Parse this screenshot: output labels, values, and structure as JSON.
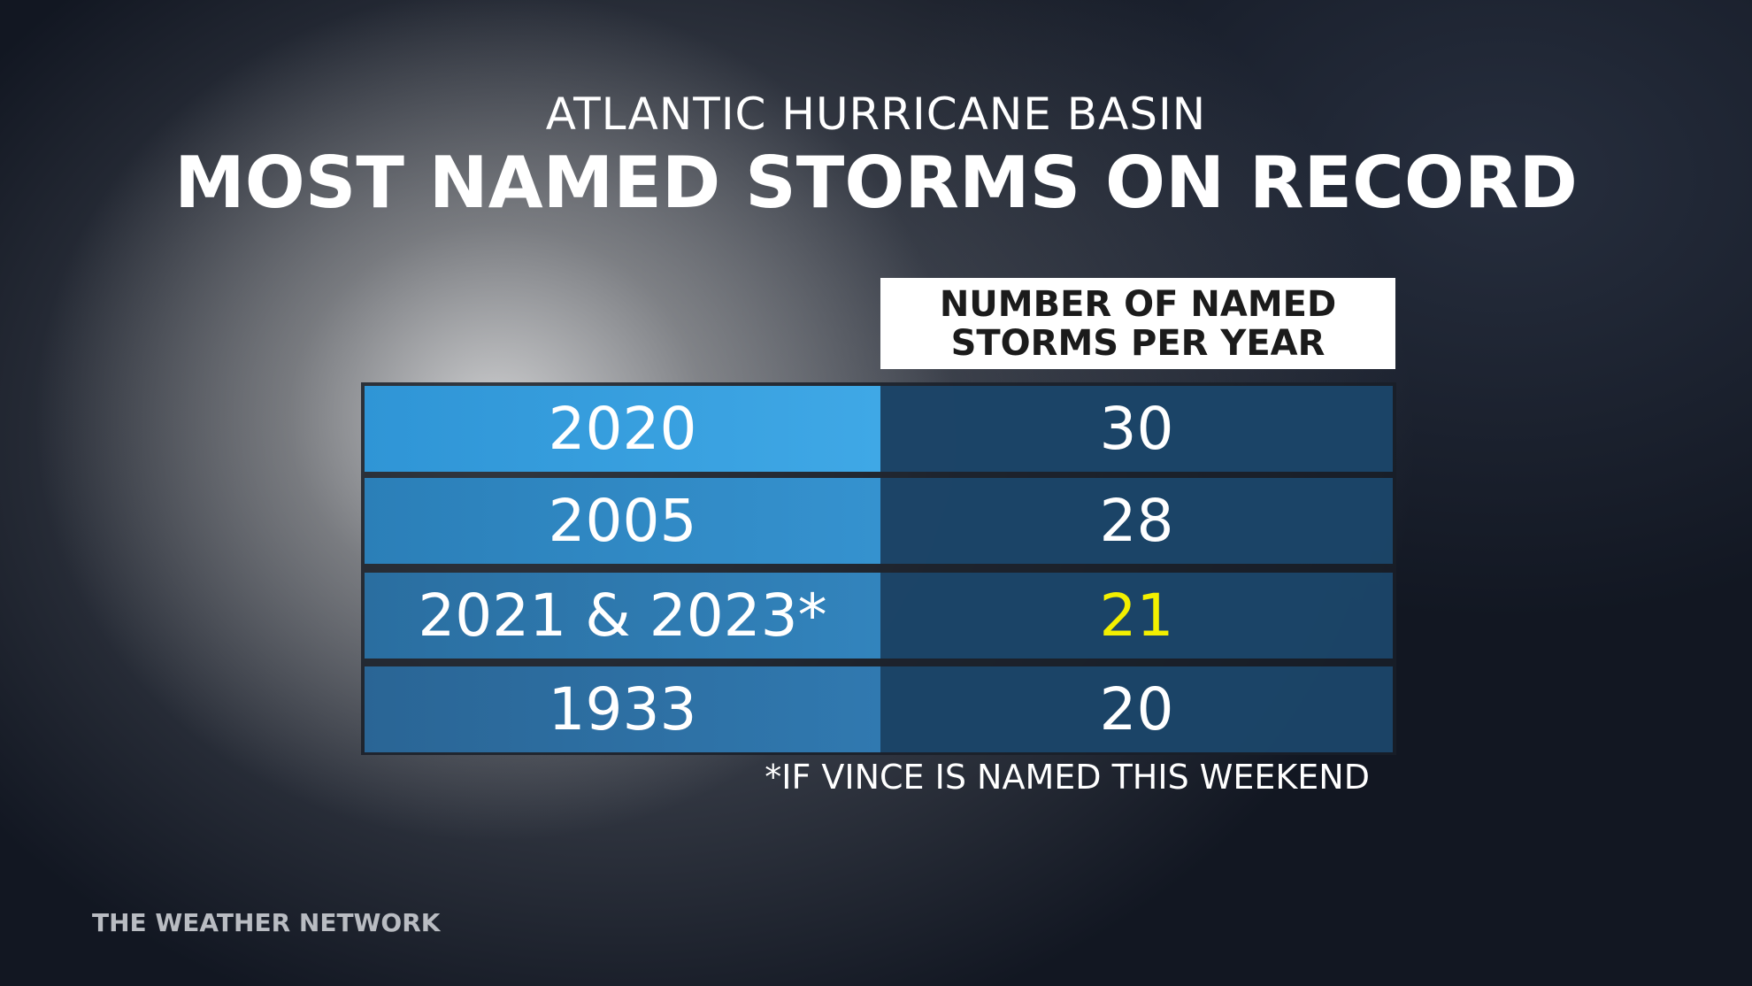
{
  "header": {
    "subtitle": "ATLANTIC HURRICANE BASIN",
    "title": "MOST NAMED STORMS ON RECORD"
  },
  "table": {
    "column_header": [
      "NUMBER OF NAMED",
      "STORMS PER YEAR"
    ],
    "rows": [
      [
        "2020",
        30
      ],
      [
        "2005",
        28
      ],
      [
        "2021 & 2023*",
        21
      ],
      [
        "1933",
        20
      ]
    ],
    "footnote": "*IF VINCE IS NAMED THIS WEEKEND"
  },
  "brand": "THE WEATHER NETWORK"
}
